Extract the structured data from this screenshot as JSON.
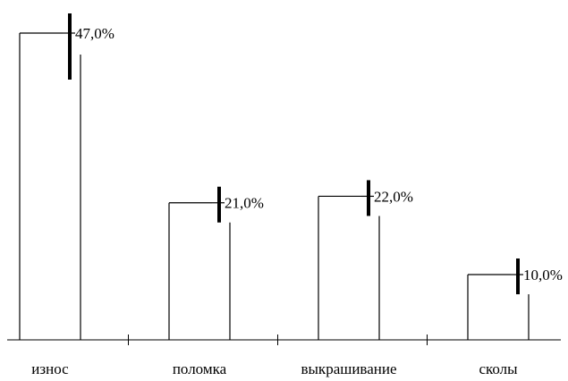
{
  "chart_data": {
    "type": "bar",
    "categories": [
      "износ",
      "поломка",
      "выкрашивание",
      "сколы"
    ],
    "values": [
      47.0,
      21.0,
      22.0,
      10.0
    ],
    "value_labels": [
      "47,0%",
      "21,0%",
      "22,0%",
      "10,0%"
    ],
    "ylim": [
      0,
      50
    ],
    "grid": false,
    "legend": "none",
    "title": "",
    "xlabel": "",
    "ylabel": "",
    "colors": {
      "bar_fill": "#ffffff",
      "stroke": "#000000"
    }
  }
}
